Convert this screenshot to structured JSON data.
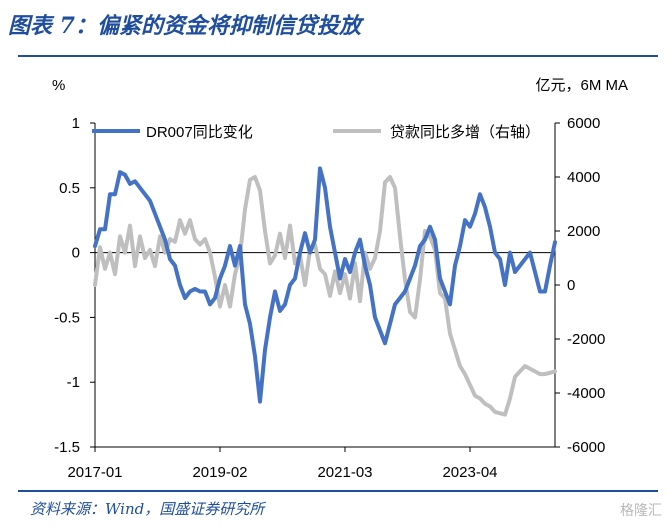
{
  "page": {
    "title": "图表 7：偏紧的资金将抑制信贷投放",
    "source": "资料来源：Wind，国盛证券研究所",
    "watermark": "格隆汇"
  },
  "chart_data": {
    "type": "line",
    "left_unit": "%",
    "right_unit": "亿元，6M MA",
    "x_tick_labels": [
      "2017-01",
      "2019-02",
      "2021-03",
      "2023-04"
    ],
    "x_tick_positions": [
      0,
      25,
      50,
      75
    ],
    "y_left": {
      "lim": [
        -1.5,
        1
      ],
      "ticks": [
        1,
        0.5,
        0,
        -0.5,
        -1,
        -1.5
      ],
      "tick_labels": [
        "1",
        "0.5",
        "0",
        "-0.5",
        "-1",
        "-1.5"
      ]
    },
    "y_right": {
      "lim": [
        -6000,
        6000
      ],
      "ticks": [
        6000,
        4000,
        2000,
        0,
        -2000,
        -4000,
        -6000
      ],
      "tick_labels": [
        "6000",
        "4000",
        "2000",
        "0",
        "-2000",
        "-4000",
        "-6000"
      ]
    },
    "colors": {
      "dr007": "#4472c4",
      "loans": "#bfbfbf"
    },
    "legend": [
      "DR007同比变化",
      "贷款同比多增（右轴）"
    ],
    "series": [
      {
        "name": "DR007同比变化",
        "axis": "left",
        "x": [
          0,
          1,
          2,
          3,
          4,
          5,
          6,
          7,
          8,
          9,
          10,
          11,
          12,
          13,
          14,
          15,
          16,
          17,
          18,
          19,
          20,
          21,
          22,
          23,
          24,
          25,
          26,
          27,
          28,
          29,
          30,
          31,
          32,
          33,
          34,
          35,
          36,
          37,
          38,
          39,
          40,
          41,
          42,
          43,
          44,
          45,
          46,
          47,
          48,
          49,
          50,
          51,
          52,
          53,
          54,
          55,
          56,
          57,
          58,
          59,
          60,
          61,
          62,
          63,
          64,
          65,
          66,
          67,
          68,
          69,
          70,
          71,
          72,
          73,
          74,
          75,
          76,
          77,
          78,
          79,
          80,
          81,
          82,
          83,
          84,
          85,
          86,
          87,
          88,
          89,
          90,
          91,
          92
        ],
        "y": [
          0.05,
          0.18,
          0.18,
          0.45,
          0.45,
          0.62,
          0.6,
          0.53,
          0.55,
          0.5,
          0.45,
          0.4,
          0.3,
          0.2,
          0.1,
          -0.05,
          -0.1,
          -0.25,
          -0.35,
          -0.3,
          -0.28,
          -0.3,
          -0.3,
          -0.4,
          -0.35,
          -0.2,
          -0.1,
          0.05,
          -0.1,
          0.05,
          -0.4,
          -0.55,
          -0.8,
          -1.15,
          -0.75,
          -0.5,
          -0.3,
          -0.45,
          -0.4,
          -0.25,
          -0.2,
          0.0,
          0.15,
          0.0,
          0.1,
          0.65,
          0.5,
          0.2,
          0.0,
          -0.2,
          -0.05,
          -0.15,
          0.0,
          0.1,
          -0.1,
          -0.25,
          -0.5,
          -0.6,
          -0.7,
          -0.55,
          -0.4,
          -0.35,
          -0.3,
          -0.2,
          -0.1,
          0.05,
          0.1,
          0.2,
          0.1,
          -0.2,
          -0.3,
          -0.4,
          -0.1,
          0.05,
          0.25,
          0.2,
          0.3,
          0.45,
          0.35,
          0.2,
          0.0,
          -0.05,
          -0.25,
          0.0,
          -0.15,
          -0.1,
          -0.05,
          0.0,
          -0.15,
          -0.3,
          -0.3,
          -0.1,
          0.08
        ]
      },
      {
        "name": "贷款同比多增（右轴）",
        "axis": "right",
        "x": [
          0,
          1,
          2,
          3,
          4,
          5,
          6,
          7,
          8,
          9,
          10,
          11,
          12,
          13,
          14,
          15,
          16,
          17,
          18,
          19,
          20,
          21,
          22,
          23,
          24,
          25,
          26,
          27,
          28,
          29,
          30,
          31,
          32,
          33,
          34,
          35,
          36,
          37,
          38,
          39,
          40,
          41,
          42,
          43,
          44,
          45,
          46,
          47,
          48,
          49,
          50,
          51,
          52,
          53,
          54,
          55,
          56,
          57,
          58,
          59,
          60,
          61,
          62,
          63,
          64,
          65,
          66,
          67,
          68,
          69,
          70,
          71,
          72,
          73,
          74,
          75,
          76,
          77,
          78,
          79,
          80,
          81,
          82,
          83,
          84,
          85,
          86,
          87,
          88,
          89,
          90,
          91,
          92
        ],
        "y": [
          0,
          1400,
          600,
          1200,
          400,
          1800,
          1200,
          2200,
          700,
          1800,
          1000,
          1300,
          700,
          1800,
          1200,
          1700,
          1600,
          2400,
          1900,
          2400,
          1700,
          1500,
          1700,
          1200,
          300,
          -800,
          0,
          -800,
          400,
          1100,
          2800,
          3900,
          4000,
          3500,
          2000,
          800,
          1100,
          1900,
          1000,
          2200,
          800,
          1100,
          0,
          1300,
          1500,
          600,
          400,
          -400,
          500,
          -300,
          400,
          -500,
          800,
          -600,
          1200,
          600,
          1000,
          2000,
          3800,
          4000,
          3600,
          1800,
          200,
          -1000,
          -1200,
          200,
          2000,
          1800,
          1300,
          -300,
          -500,
          -1800,
          -2400,
          -3000,
          -3300,
          -3700,
          -4100,
          -4200,
          -4400,
          -4500,
          -4700,
          -4750,
          -4800,
          -4200,
          -3400,
          -3200,
          -3000,
          -3100,
          -3200,
          -3300,
          -3300,
          -3250,
          -3200
        ]
      }
    ]
  }
}
